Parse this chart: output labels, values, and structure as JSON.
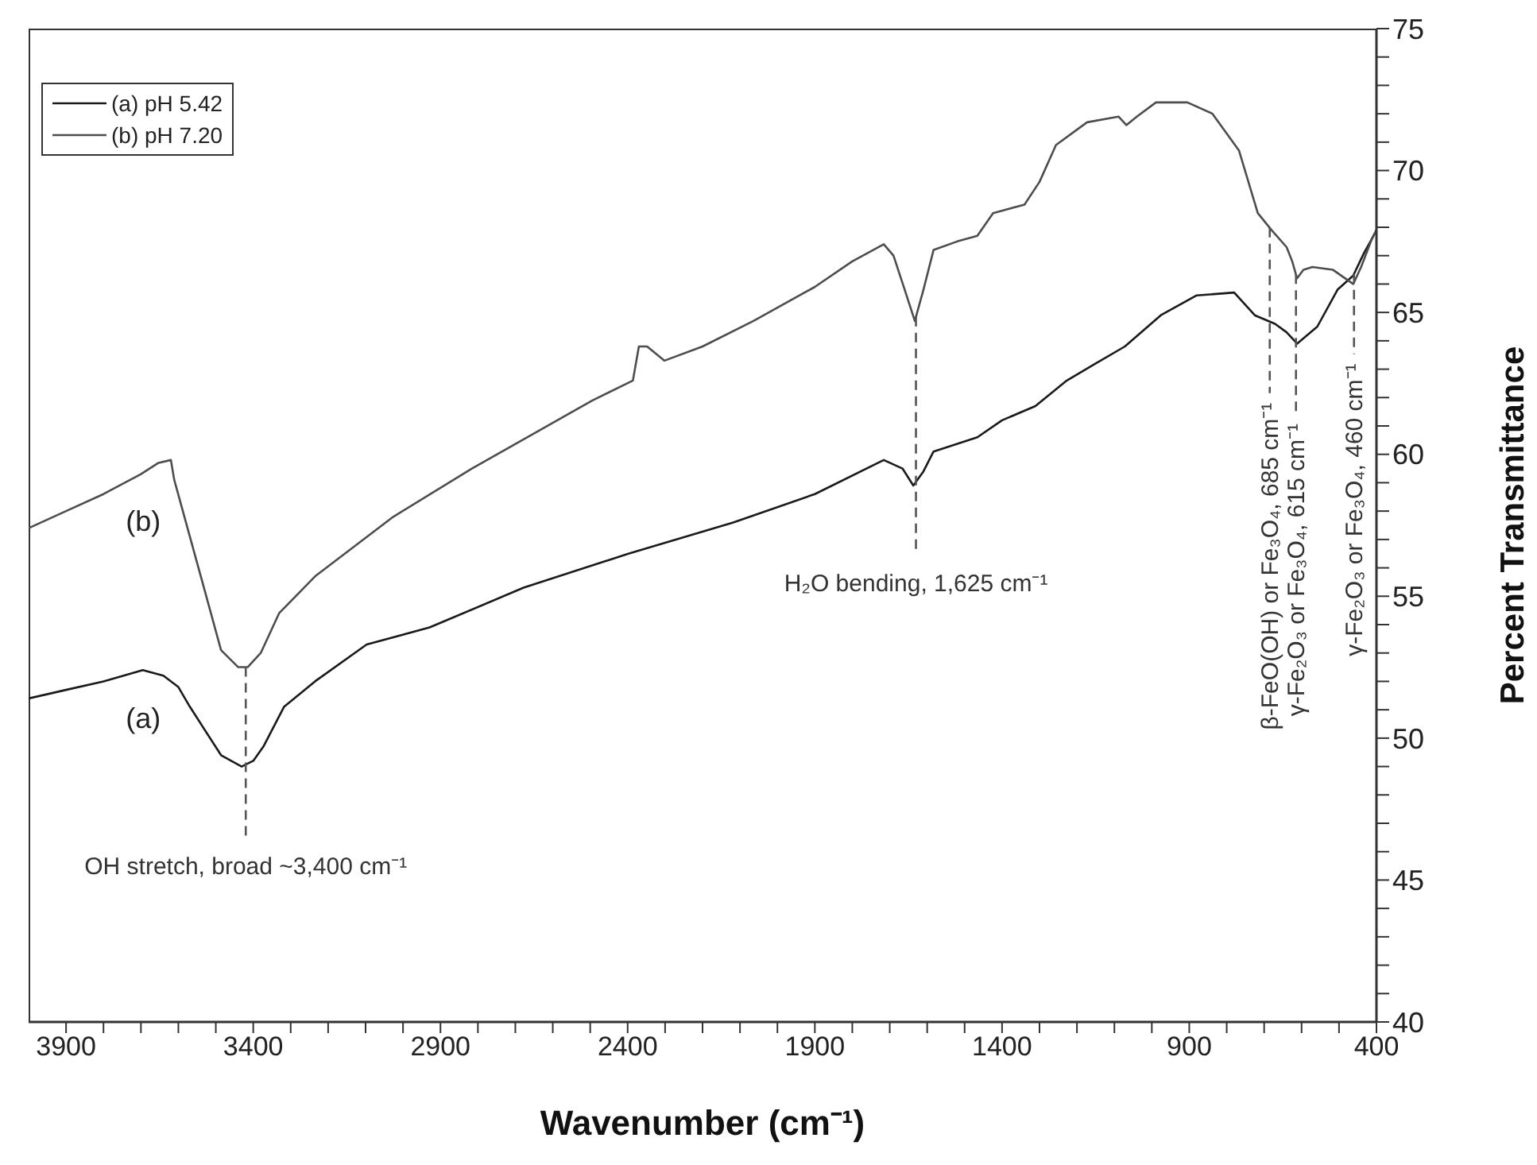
{
  "chart_data": {
    "type": "line",
    "xlabel": "Wavenumber (cm⁻¹)",
    "ylabel": "Percent Transmittance",
    "xlim": [
      4000,
      400
    ],
    "xticks": [
      3900,
      {
        "value": 3800,
        "label": null
      },
      {
        "value": 3700,
        "label": null
      },
      {
        "value": 3600,
        "label": null
      },
      {
        "value": 3500,
        "label": null
      },
      3400,
      {
        "value": 3300,
        "label": null
      },
      {
        "value": 3200,
        "label": null
      },
      {
        "value": 3100,
        "label": null
      },
      {
        "value": 3000,
        "label": null
      },
      2900,
      {
        "value": 2800,
        "label": null
      },
      {
        "value": 2700,
        "label": null
      },
      {
        "value": 2600,
        "label": null
      },
      {
        "value": 2500,
        "label": null
      },
      2400,
      {
        "value": 2300,
        "label": null
      },
      {
        "value": 2200,
        "label": null
      },
      {
        "value": 2100,
        "label": null
      },
      {
        "value": 2000,
        "label": null
      },
      1900,
      {
        "value": 1800,
        "label": null
      },
      {
        "value": 1700,
        "label": null
      },
      {
        "value": 1600,
        "label": null
      },
      {
        "value": 1500,
        "label": null
      },
      1400,
      {
        "value": 1300,
        "label": null
      },
      {
        "value": 1200,
        "label": null
      },
      {
        "value": 1100,
        "label": null
      },
      {
        "value": 1000,
        "label": null
      },
      900,
      {
        "value": 800,
        "label": null
      },
      {
        "value": 700,
        "label": null
      },
      {
        "value": 600,
        "label": null
      },
      {
        "value": 500,
        "label": null
      },
      400
    ],
    "ylim": [
      40,
      75
    ],
    "yticks": [
      40,
      {
        "value": 41,
        "label": null
      },
      {
        "value": 42,
        "label": null
      },
      {
        "value": 43,
        "label": null
      },
      {
        "value": 44,
        "label": null
      },
      45,
      {
        "value": 46,
        "label": null
      },
      {
        "value": 47,
        "label": null
      },
      {
        "value": 48,
        "label": null
      },
      {
        "value": 49,
        "label": null
      },
      50,
      {
        "value": 51,
        "label": null
      },
      {
        "value": 52,
        "label": null
      },
      {
        "value": 53,
        "label": null
      },
      {
        "value": 54,
        "label": null
      },
      55,
      {
        "value": 56,
        "label": null
      },
      {
        "value": 57,
        "label": null
      },
      {
        "value": 58,
        "label": null
      },
      {
        "value": 59,
        "label": null
      },
      60,
      {
        "value": 61,
        "label": null
      },
      {
        "value": 62,
        "label": null
      },
      {
        "value": 63,
        "label": null
      },
      {
        "value": 64,
        "label": null
      },
      65,
      {
        "value": 66,
        "label": null
      },
      {
        "value": 67,
        "label": null
      },
      {
        "value": 68,
        "label": null
      },
      {
        "value": 69,
        "label": null
      },
      70,
      {
        "value": 71,
        "label": null
      },
      {
        "value": 72,
        "label": null
      },
      {
        "value": 73,
        "label": null
      },
      {
        "value": 74,
        "label": null
      },
      75
    ],
    "legend": "top left",
    "marker": "none",
    "line_style": "solid",
    "series": [
      {
        "name": "(a) pH 5.42",
        "color": "#1a1a1a",
        "x": [
          4000,
          3900,
          3800,
          3695,
          3640,
          3600,
          3569,
          3486,
          3431,
          3400,
          3373,
          3318,
          3235,
          3097,
          2929,
          2678,
          2398,
          2118,
          1900,
          1716,
          1666,
          1637,
          1610,
          1583,
          1466,
          1400,
          1311,
          1227,
          1150,
          1072,
          976,
          880,
          780,
          725,
          671,
          640,
          612,
          558,
          504,
          462,
          433,
          412,
          400
        ],
        "values": [
          51.4,
          51.7,
          52.0,
          52.4,
          52.2,
          51.8,
          51.1,
          49.4,
          49.0,
          49.2,
          49.7,
          51.1,
          52.0,
          53.3,
          53.9,
          55.3,
          56.5,
          57.6,
          58.6,
          59.8,
          59.5,
          58.9,
          59.4,
          60.1,
          60.6,
          61.2,
          61.7,
          62.6,
          63.2,
          63.8,
          64.9,
          65.6,
          65.7,
          64.9,
          64.6,
          64.3,
          63.9,
          64.5,
          65.8,
          66.3,
          67.1,
          67.6,
          67.9
        ]
      },
      {
        "name": "(b) pH 7.20",
        "color": "#4d4d4d",
        "x": [
          4000,
          3900,
          3800,
          3700,
          3653,
          3620,
          3611,
          3540,
          3486,
          3440,
          3415,
          3380,
          3331,
          3235,
          3026,
          2816,
          2494,
          2386,
          2370,
          2348,
          2302,
          2200,
          2064,
          1900,
          1800,
          1716,
          1690,
          1660,
          1633,
          1610,
          1583,
          1520,
          1466,
          1424,
          1340,
          1300,
          1256,
          1173,
          1089,
          1068,
          1040,
          989,
          905,
          838,
          767,
          717,
          680,
          640,
          625,
          612,
          595,
          571,
          516,
          462,
          441,
          412,
          400
        ],
        "values": [
          57.4,
          58.0,
          58.6,
          59.3,
          59.7,
          59.8,
          59.1,
          55.7,
          53.1,
          52.5,
          52.5,
          53.0,
          54.4,
          55.7,
          57.8,
          59.5,
          61.9,
          62.6,
          63.8,
          63.8,
          63.3,
          63.8,
          64.7,
          65.9,
          66.8,
          67.4,
          67.0,
          65.8,
          64.7,
          65.8,
          67.2,
          67.5,
          67.7,
          68.5,
          68.8,
          69.6,
          70.9,
          71.7,
          71.9,
          71.6,
          71.9,
          72.4,
          72.4,
          72.0,
          70.7,
          68.5,
          67.9,
          67.3,
          66.8,
          66.2,
          66.5,
          66.6,
          66.5,
          66.0,
          66.6,
          67.6,
          67.9
        ]
      }
    ],
    "ref_lines": [
      {
        "axis": "x",
        "value": 3420,
        "label": "OH stretch,  broad ~3,400 cm⁻¹",
        "line_style": "dashed",
        "color": "#555555"
      },
      {
        "axis": "x",
        "value": 1630,
        "label": "H₂O bending, 1,625 cm⁻¹",
        "line_style": "dashed",
        "color": "#555555"
      },
      {
        "axis": "x",
        "value": 685,
        "label": "β-FeO(OH) or Fe₃O₄,  685 cm⁻¹",
        "line_style": "dashed",
        "color": "#555555"
      },
      {
        "axis": "x",
        "value": 615,
        "label": "γ-Fe₂O₃ or Fe₃O₄, 615 cm⁻¹",
        "line_style": "dashed",
        "color": "#555555"
      },
      {
        "axis": "x",
        "value": 460,
        "label": "γ-Fe₂O₃ or Fe₃O₄, 460 cm⁻¹",
        "line_style": "dashed",
        "color": "#555555"
      }
    ],
    "annotations": [
      "(a)",
      "(b)"
    ]
  }
}
